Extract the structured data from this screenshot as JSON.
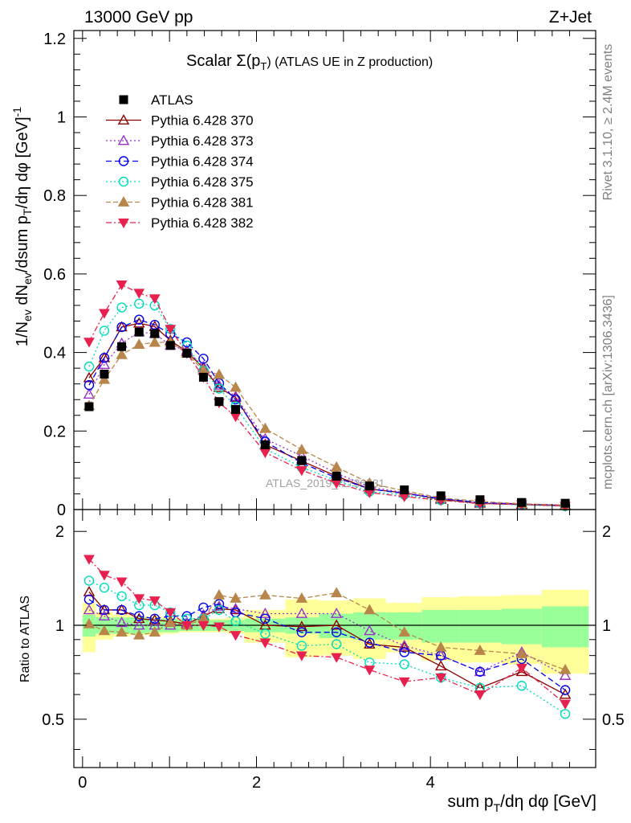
{
  "header": {
    "left": "13000 GeV pp",
    "right": "Z+Jet"
  },
  "side_labels": {
    "rivet": "Rivet 3.1.10, ≥ 2.4M events",
    "mcplots": "mcplots.cern.ch [arXiv:1306.3436]"
  },
  "watermark": "ATLAS_2019_I1736531",
  "colors": {
    "data": "#000000",
    "p370": "#8b0000",
    "p373": "#9932cc",
    "p374": "#0000ee",
    "p375": "#00ddbb",
    "p381": "#b8864b",
    "p382": "#e8204f",
    "band_inner": "#99ff99",
    "band_outer": "#ffff99"
  },
  "chart_data": {
    "type": "scatter",
    "title": "Scalar Σ(p_T) (ATLAS UE in Z production)",
    "title_main": "Scalar Σ(p",
    "title_sub": "T",
    "title_tail": ") (ATLAS UE in Z production)",
    "xlabel": "sum p_T/dη dφ [GeV]",
    "ylabel": "1/N_ev dN_ev/dsum p_T/dη dφ [GeV]^-1",
    "ratio_ylabel": "Ratio to ATLAS",
    "xlim": [
      -0.1,
      5.9
    ],
    "ylim": [
      0,
      1.22
    ],
    "ratio_ylim": [
      0.35,
      2.35
    ],
    "x_ticks": [
      {
        "v": 0,
        "label": "0"
      },
      {
        "v": 2,
        "label": "2"
      },
      {
        "v": 4,
        "label": "4"
      }
    ],
    "y_ticks": [
      {
        "v": 0,
        "label": "0"
      },
      {
        "v": 0.2,
        "label": "0.2"
      },
      {
        "v": 0.4,
        "label": "0.4"
      },
      {
        "v": 0.6,
        "label": "0.6"
      },
      {
        "v": 0.8,
        "label": "0.8"
      },
      {
        "v": 1,
        "label": "1"
      },
      {
        "v": 1.2,
        "label": "1.2"
      }
    ],
    "ratio_ticks": [
      {
        "v": 0.5,
        "label": "0.5"
      },
      {
        "v": 1,
        "label": "1"
      },
      {
        "v": 2,
        "label": "2"
      }
    ],
    "x": [
      0.075,
      0.25,
      0.45,
      0.65,
      0.83,
      1.01,
      1.2,
      1.39,
      1.57,
      1.76,
      2.1,
      2.52,
      2.92,
      3.3,
      3.7,
      4.12,
      4.57,
      5.05,
      5.55
    ],
    "bins": [
      0,
      0.15,
      0.35,
      0.55,
      0.74,
      0.92,
      1.1,
      1.29,
      1.48,
      1.66,
      1.86,
      2.33,
      2.72,
      3.11,
      3.49,
      3.9,
      4.33,
      4.82,
      5.28,
      5.82
    ],
    "band_inner": [
      0.08,
      0.06,
      0.06,
      0.06,
      0.05,
      0.05,
      0.04,
      0.04,
      0.04,
      0.04,
      0.05,
      0.06,
      0.09,
      0.1,
      0.1,
      0.12,
      0.12,
      0.13,
      0.15
    ],
    "band_outer": [
      0.18,
      0.1,
      0.08,
      0.07,
      0.07,
      0.06,
      0.05,
      0.05,
      0.05,
      0.06,
      0.12,
      0.21,
      0.2,
      0.22,
      0.18,
      0.23,
      0.24,
      0.25,
      0.3
    ],
    "data": {
      "name": "ATLAS",
      "values": [
        0.262,
        0.345,
        0.415,
        0.452,
        0.448,
        0.418,
        0.398,
        0.337,
        0.275,
        0.255,
        0.165,
        0.125,
        0.085,
        0.06,
        0.05,
        0.035,
        0.025,
        0.018,
        0.016
      ]
    },
    "series": [
      {
        "name": "Pythia 6.428 370",
        "color": "#8b0000",
        "marker": "tri-open",
        "dash": "",
        "ratios": [
          1.28,
          1.12,
          1.12,
          1.05,
          1.04,
          1.03,
          1.01,
          1.07,
          1.13,
          1.12,
          1.0,
          0.99,
          1.0,
          0.87,
          0.85,
          0.74,
          0.63,
          0.71,
          0.6
        ]
      },
      {
        "name": "Pythia 6.428 373",
        "color": "#9932cc",
        "marker": "tri-open",
        "dash": "2 3",
        "ratios": [
          1.12,
          1.07,
          1.02,
          1.0,
          1.0,
          1.0,
          1.02,
          1.08,
          1.15,
          1.13,
          1.09,
          1.09,
          1.09,
          0.96,
          0.86,
          0.8,
          0.71,
          0.82,
          0.69
        ]
      },
      {
        "name": "Pythia 6.428 374",
        "color": "#0000ee",
        "marker": "circ-open",
        "dash": "7 4",
        "ratios": [
          1.21,
          1.12,
          1.12,
          1.07,
          1.05,
          1.07,
          1.07,
          1.14,
          1.17,
          1.1,
          1.05,
          0.95,
          0.95,
          0.88,
          0.82,
          0.8,
          0.71,
          0.78,
          0.62
        ]
      },
      {
        "name": "Pythia 6.428 375",
        "color": "#00ddbb",
        "marker": "circ-open",
        "dash": "2 3",
        "ratios": [
          1.39,
          1.32,
          1.24,
          1.16,
          1.16,
          1.1,
          1.05,
          1.05,
          1.12,
          1.03,
          0.94,
          0.86,
          0.87,
          0.76,
          0.75,
          0.68,
          0.63,
          0.64,
          0.52
        ]
      },
      {
        "name": "Pythia 6.428 381",
        "color": "#b8864b",
        "marker": "tri-fill",
        "dash": "6 3",
        "ratios": [
          1.01,
          0.96,
          0.95,
          0.93,
          0.95,
          1.02,
          1.0,
          1.05,
          1.25,
          1.22,
          1.25,
          1.22,
          1.27,
          1.12,
          0.95,
          0.85,
          0.83,
          0.81,
          0.72
        ]
      },
      {
        "name": "Pythia 6.428 382",
        "color": "#e8204f",
        "marker": "tri-down-fill",
        "dash": "7 3 2 3",
        "ratios": [
          1.63,
          1.45,
          1.38,
          1.22,
          1.2,
          1.1,
          1.0,
          1.0,
          0.99,
          0.93,
          0.88,
          0.8,
          0.79,
          0.72,
          0.66,
          0.68,
          0.6,
          0.73,
          0.56
        ]
      }
    ]
  }
}
